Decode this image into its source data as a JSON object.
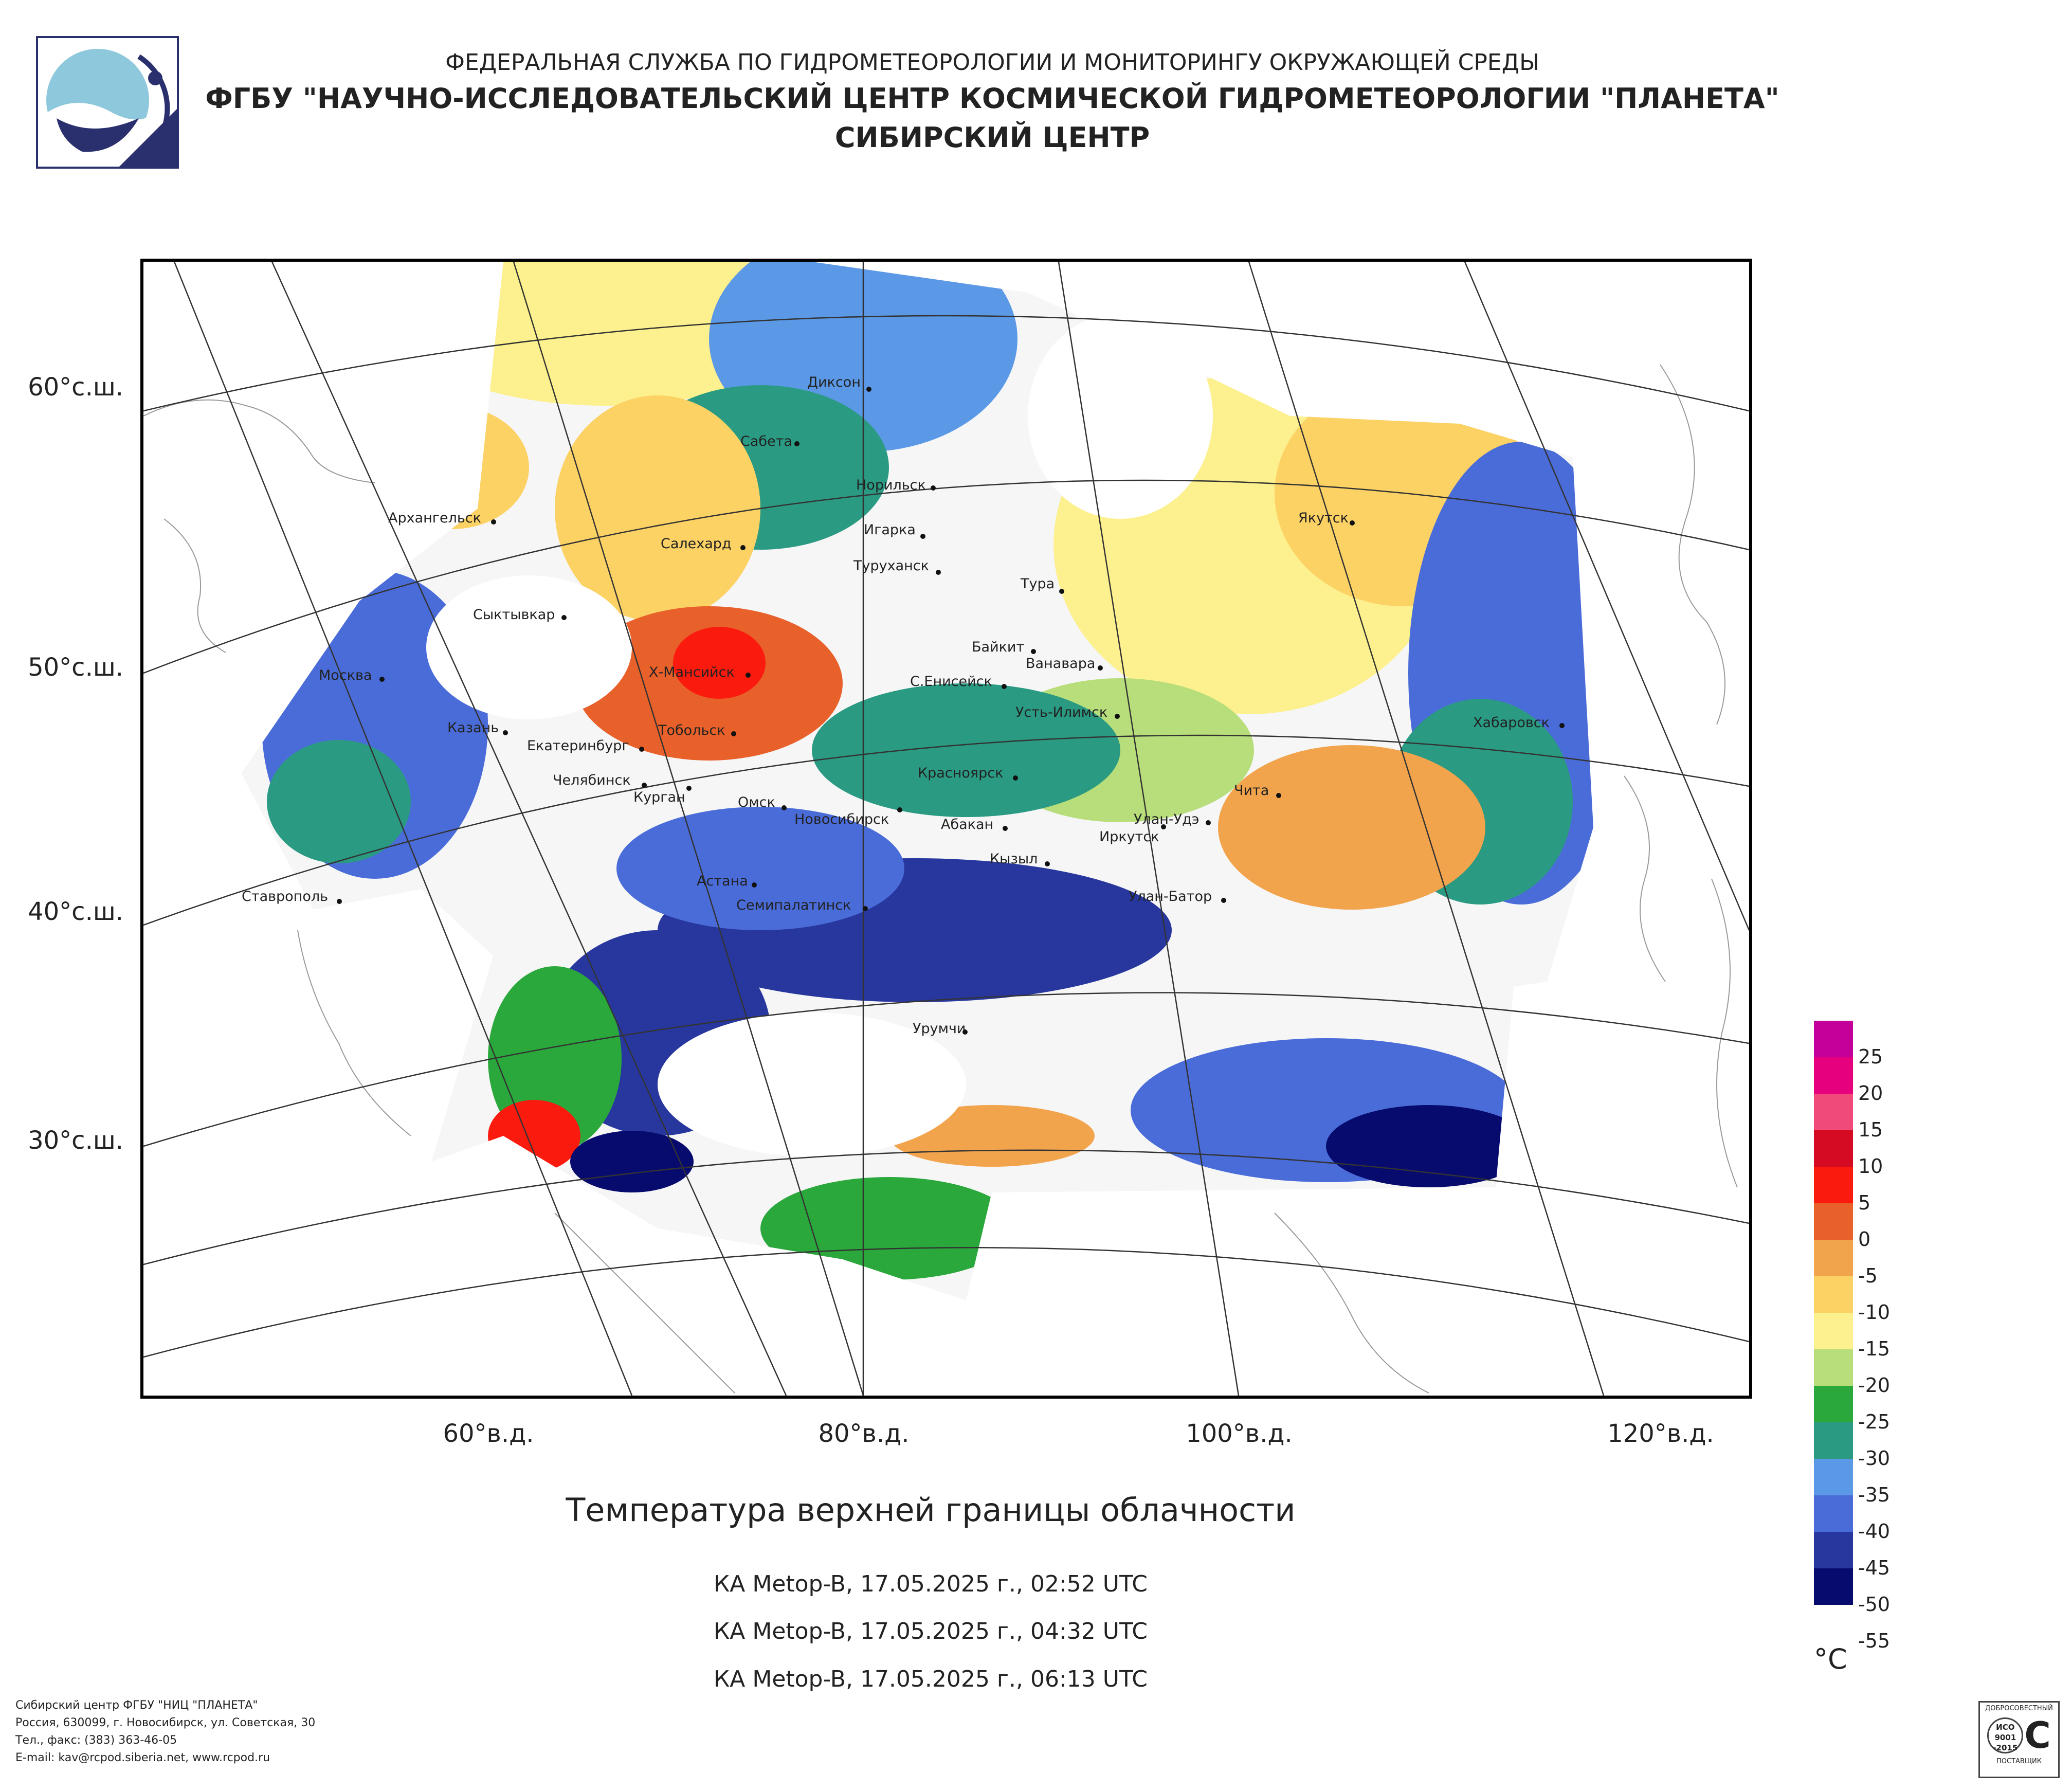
{
  "header": {
    "line1": "ФЕДЕРАЛЬНАЯ СЛУЖБА ПО ГИДРОМЕТЕОРОЛОГИИ И МОНИТОРИНГУ ОКРУЖАЮЩЕЙ СРЕДЫ",
    "line2": "ФГБУ \"НАУЧНО-ИССЛЕДОВАТЕЛЬСКИЙ ЦЕНТР КОСМИЧЕСКОЙ ГИДРОМЕТЕОРОЛОГИИ \"ПЛАНЕТА\"",
    "line3": "СИБИРСКИЙ ЦЕНТР"
  },
  "map": {
    "lat_labels": [
      "60°с.ш.",
      "50°с.ш.",
      "40°с.ш.",
      "30°с.ш."
    ],
    "lon_labels": [
      "60°в.д.",
      "80°в.д.",
      "100°в.д.",
      "120°в.д."
    ],
    "cities": [
      "Диксон",
      "Сабета",
      "Норильск",
      "Архангельск",
      "Игарка",
      "Салехард",
      "Туруханск",
      "Якутск",
      "Тура",
      "Сыктывкар",
      "Байкит",
      "Ванавара",
      "Х-Мансийск",
      "С.Енисейск",
      "Москва",
      "Усть-Илимск",
      "Казань",
      "Тобольск",
      "Хабаровск",
      "Екатеринбург",
      "Красноярск",
      "Челябинск",
      "Чита",
      "Курган",
      "Омск",
      "Новосибирск",
      "Улан-Удэ",
      "Абакан",
      "Иркутск",
      "Кызыл",
      "Астана",
      "Ставрополь",
      "Улан-Батор",
      "Семипалатинск",
      "Урумчи"
    ]
  },
  "legend": {
    "unit": "°C",
    "labels": [
      "25",
      "20",
      "15",
      "10",
      "5",
      "0",
      "-5",
      "-10",
      "-15",
      "-20",
      "-25",
      "-30",
      "-35",
      "-40",
      "-45",
      "-50",
      "-55"
    ],
    "colors": [
      "#c4009a",
      "#e6007e",
      "#f04a7a",
      "#d40b22",
      "#fa1a0e",
      "#e8602a",
      "#f2a44d",
      "#fcd265",
      "#fdf08e",
      "#b7de7a",
      "#2aa83c",
      "#2a9a82",
      "#5b98e6",
      "#4a6cd8",
      "#28379e",
      "#070b6e"
    ]
  },
  "title": "Температура верхней границы облачности",
  "passes": [
    "КА Metop-B, 17.05.2025 г., 02:52 UTC",
    "КА Metop-B, 17.05.2025 г., 04:32 UTC",
    "КА Metop-B, 17.05.2025 г., 06:13 UTC"
  ],
  "footer": {
    "line1": "Сибирский центр ФГБУ \"НИЦ \"ПЛАНЕТА\"",
    "line2": "Россия, 630099, г. Новосибирск, ул. Советская, 30",
    "line3": "Тел., факс: (383) 363-46-05",
    "line4": "E-mail: kav@rcpod.siberia.net, www.rcpod.ru"
  },
  "iso_badge": {
    "top": "ДОБРОСОВЕСТНЫЙ",
    "l1": "ИСО",
    "l2": "9001",
    "l3": "-2015",
    "bottom": "ПОСТАВЩИК"
  }
}
